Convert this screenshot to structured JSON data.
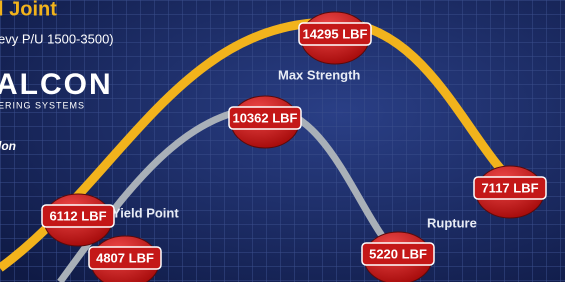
{
  "header": {
    "title": "l Joint",
    "subtitle": "evy P/U 1500-3500)",
    "logo": "ALCON",
    "logo_sub": "ERING SYSTEMS",
    "note": "lon"
  },
  "labels": [
    "Max Strength",
    "Yield Point",
    "Rupture"
  ],
  "badges": [
    "14295 LBF",
    "10362 LBF",
    "6112 LBF",
    "4807 LBF",
    "5220 LBF",
    "7117 LBF"
  ]
}
